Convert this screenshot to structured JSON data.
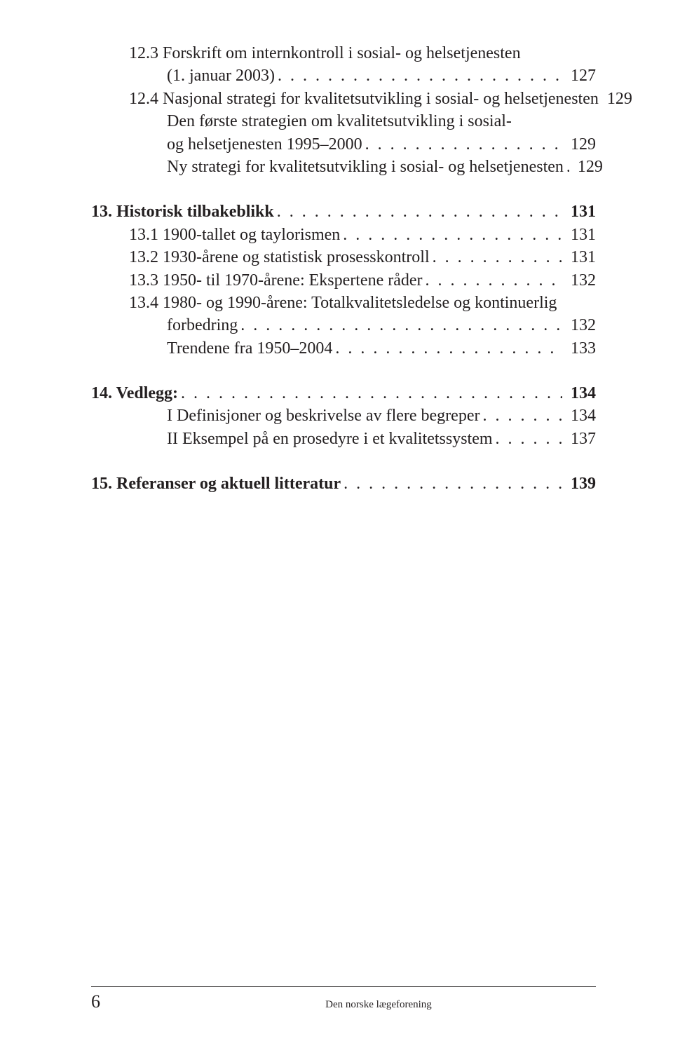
{
  "toc": {
    "items": [
      {
        "kind": "line",
        "indent": 1,
        "bold": false,
        "text": "12.3 Forskrift om internkontroll i sosial- og helsetjenesten",
        "leader": false,
        "page": ""
      },
      {
        "kind": "line",
        "indent": 2,
        "bold": false,
        "text": "(1. januar 2003)",
        "leader": true,
        "page": "127"
      },
      {
        "kind": "line",
        "indent": 1,
        "bold": false,
        "text": "12.4 Nasjonal strategi for kvalitetsutvikling i sosial- og helsetjenesten",
        "leader": false,
        "page": "129"
      },
      {
        "kind": "line",
        "indent": 2,
        "bold": false,
        "text": "Den første strategien om kvalitetsutvikling i sosial-",
        "leader": false,
        "page": ""
      },
      {
        "kind": "line",
        "indent": 2,
        "bold": false,
        "text": "og helsetjenesten 1995–2000",
        "leader": true,
        "page": "129"
      },
      {
        "kind": "line",
        "indent": 2,
        "bold": false,
        "text": "Ny strategi for kvalitetsutvikling i sosial- og helsetjenesten",
        "leader": true,
        "page": "129"
      },
      {
        "kind": "gap"
      },
      {
        "kind": "line",
        "indent": 0,
        "bold": true,
        "text": "13. Historisk tilbakeblikk",
        "leader": true,
        "page": "131"
      },
      {
        "kind": "line",
        "indent": 1,
        "bold": false,
        "text": "13.1 1900-tallet og taylorismen",
        "leader": true,
        "page": "131"
      },
      {
        "kind": "line",
        "indent": 1,
        "bold": false,
        "text": "13.2 1930-årene og statistisk prosesskontroll",
        "leader": true,
        "page": "131"
      },
      {
        "kind": "line",
        "indent": 1,
        "bold": false,
        "text": "13.3 1950- til 1970-årene: Ekspertene råder",
        "leader": true,
        "page": "132"
      },
      {
        "kind": "line",
        "indent": 1,
        "bold": false,
        "text": "13.4 1980- og 1990-årene: Totalkvalitetsledelse og kontinuerlig",
        "leader": false,
        "page": ""
      },
      {
        "kind": "line",
        "indent": 2,
        "bold": false,
        "text": "forbedring",
        "leader": true,
        "page": "132"
      },
      {
        "kind": "line",
        "indent": 2,
        "bold": false,
        "text": "Trendene fra 1950–2004",
        "leader": true,
        "page": "133"
      },
      {
        "kind": "gap"
      },
      {
        "kind": "line",
        "indent": 0,
        "bold": true,
        "text": "14. Vedlegg:",
        "leader": true,
        "page": "134"
      },
      {
        "kind": "line",
        "indent": 2,
        "bold": false,
        "text": "I Definisjoner og beskrivelse av flere begreper",
        "leader": true,
        "page": "134"
      },
      {
        "kind": "line",
        "indent": 2,
        "bold": false,
        "text": "II Eksempel på en prosedyre i et kvalitetssystem",
        "leader": true,
        "page": "137"
      },
      {
        "kind": "gap"
      },
      {
        "kind": "line",
        "indent": 0,
        "bold": true,
        "text": "15. Referanser og aktuell litteratur",
        "leader": true,
        "page": "139"
      }
    ]
  },
  "footer": {
    "page_number": "6",
    "publisher": "Den norske lægeforening"
  },
  "dots": ". . . . . . . . . . . . . . . . . . . . . . . . . . . . . . . . . . . . . . . . . . . . . . . . . . . . . . . . . . . . . . . . . . . . . . . . . . . . . . . ."
}
